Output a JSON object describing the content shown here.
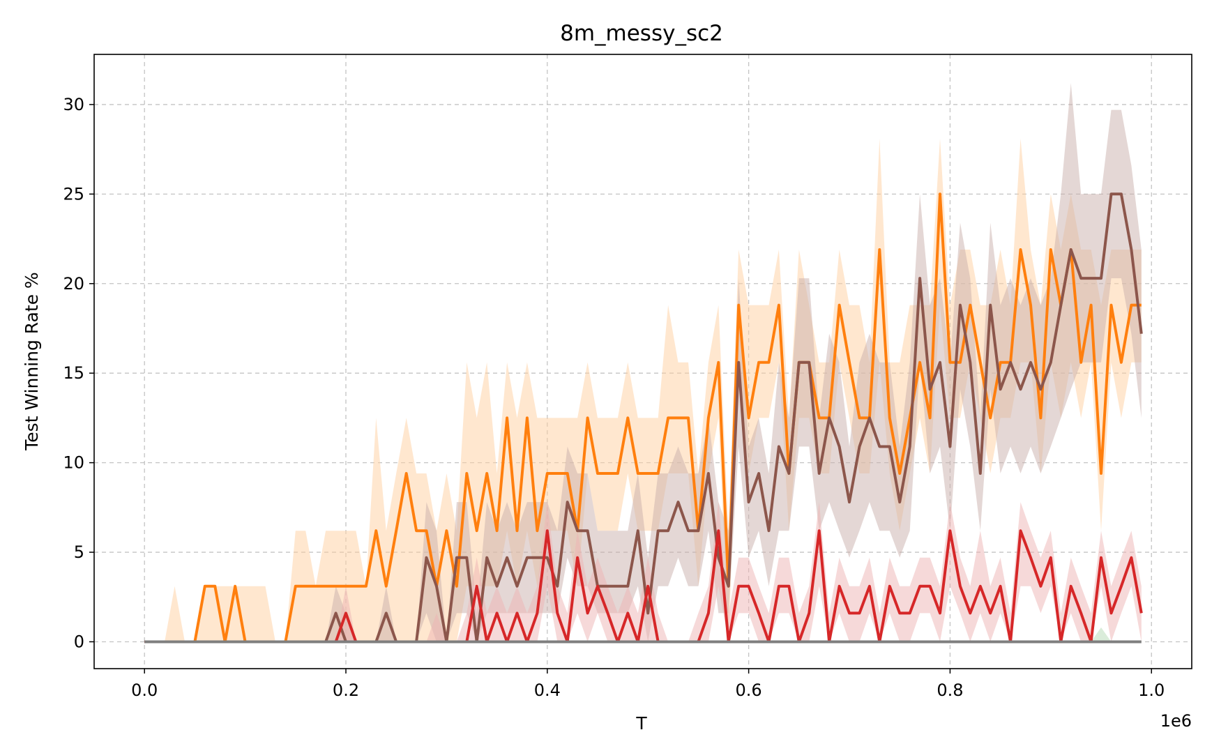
{
  "chart_data": {
    "type": "line",
    "title": "8m_messy_sc2",
    "xlabel": "T",
    "ylabel": "Test Winning Rate %",
    "x_offset_label": "1e6",
    "xlim": [
      -0.05,
      1.04
    ],
    "ylim": [
      -1.5,
      32.8
    ],
    "x_ticks": [
      0.0,
      0.2,
      0.4,
      0.6,
      0.8,
      1.0
    ],
    "x_tick_labels": [
      "0.0",
      "0.2",
      "0.4",
      "0.6",
      "0.8",
      "1.0"
    ],
    "y_ticks": [
      0,
      5,
      10,
      15,
      20,
      25,
      30
    ],
    "y_tick_labels": [
      "0",
      "5",
      "10",
      "15",
      "20",
      "25",
      "30"
    ],
    "grid": true,
    "x": [
      0.0,
      0.01,
      0.02,
      0.03,
      0.04,
      0.05,
      0.06,
      0.07,
      0.08,
      0.09,
      0.1,
      0.11,
      0.12,
      0.13,
      0.14,
      0.15,
      0.16,
      0.17,
      0.18,
      0.19,
      0.2,
      0.21,
      0.22,
      0.23,
      0.24,
      0.25,
      0.26,
      0.27,
      0.28,
      0.29,
      0.3,
      0.31,
      0.32,
      0.33,
      0.34,
      0.35,
      0.36,
      0.37,
      0.38,
      0.39,
      0.4,
      0.41,
      0.42,
      0.43,
      0.44,
      0.45,
      0.46,
      0.47,
      0.48,
      0.49,
      0.5,
      0.51,
      0.52,
      0.53,
      0.54,
      0.55,
      0.56,
      0.57,
      0.58,
      0.59,
      0.6,
      0.61,
      0.62,
      0.63,
      0.64,
      0.65,
      0.66,
      0.67,
      0.68,
      0.69,
      0.7,
      0.71,
      0.72,
      0.73,
      0.74,
      0.75,
      0.76,
      0.77,
      0.78,
      0.79,
      0.8,
      0.81,
      0.82,
      0.83,
      0.84,
      0.85,
      0.86,
      0.87,
      0.88,
      0.89,
      0.9,
      0.91,
      0.92,
      0.93,
      0.94,
      0.95,
      0.96,
      0.97,
      0.98,
      0.99
    ],
    "series": [
      {
        "color": "#ff7f0e",
        "band_color": "#ffcf9f",
        "values": [
          0,
          0,
          0,
          0,
          0,
          0,
          3.1,
          3.1,
          0,
          3.1,
          0,
          0,
          0,
          0,
          0,
          3.1,
          3.1,
          3.1,
          3.1,
          3.1,
          3.1,
          3.1,
          3.1,
          6.2,
          3.1,
          6.2,
          9.4,
          6.2,
          6.2,
          3.1,
          6.2,
          3.1,
          9.4,
          6.2,
          9.4,
          6.2,
          12.5,
          6.2,
          12.5,
          6.2,
          9.4,
          9.4,
          9.4,
          6.2,
          12.5,
          9.4,
          9.4,
          9.4,
          12.5,
          9.4,
          9.4,
          9.4,
          12.5,
          12.5,
          12.5,
          6.2,
          12.5,
          15.6,
          3.1,
          18.8,
          12.5,
          15.6,
          15.6,
          18.8,
          9.4,
          15.6,
          15.6,
          12.5,
          12.5,
          18.8,
          15.6,
          12.5,
          12.5,
          21.9,
          12.5,
          9.4,
          12.5,
          15.6,
          12.5,
          25.0,
          15.6,
          15.6,
          18.8,
          15.6,
          12.5,
          15.6,
          15.6,
          21.9,
          18.8,
          12.5,
          21.9,
          18.8,
          21.9,
          15.6,
          18.8,
          9.4,
          18.8,
          15.6,
          18.8,
          18.8
        ],
        "lower": [
          0,
          0,
          0,
          0,
          0,
          0,
          0,
          0,
          0,
          0,
          0,
          0,
          0,
          0,
          0,
          0,
          0,
          0,
          0,
          0,
          0,
          0,
          0,
          0,
          0,
          0,
          0,
          0,
          0,
          0,
          0,
          0,
          3.1,
          3.1,
          3.1,
          3.1,
          6.2,
          3.1,
          6.2,
          3.1,
          6.2,
          6.2,
          6.2,
          3.1,
          9.4,
          6.2,
          6.2,
          6.2,
          9.4,
          6.2,
          6.2,
          6.2,
          9.4,
          9.4,
          9.4,
          3.1,
          9.4,
          12.5,
          0,
          15.6,
          9.4,
          12.5,
          12.5,
          15.6,
          6.2,
          12.5,
          12.5,
          9.4,
          9.4,
          15.6,
          12.5,
          9.4,
          9.4,
          15.6,
          9.4,
          6.2,
          9.4,
          12.5,
          9.4,
          18.8,
          12.5,
          12.5,
          15.6,
          12.5,
          9.4,
          12.5,
          12.5,
          15.6,
          15.6,
          9.4,
          15.6,
          12.5,
          15.6,
          12.5,
          15.6,
          6.2,
          15.6,
          12.5,
          15.6,
          15.6
        ],
        "upper": [
          0,
          0,
          0,
          3.1,
          0,
          0,
          3.1,
          3.1,
          3.1,
          3.1,
          3.1,
          3.1,
          3.1,
          0,
          0,
          6.2,
          6.2,
          3.1,
          6.2,
          6.2,
          6.2,
          6.2,
          3.1,
          12.5,
          6.2,
          9.4,
          12.5,
          9.4,
          9.4,
          6.2,
          9.4,
          6.2,
          15.6,
          12.5,
          15.6,
          9.4,
          15.6,
          12.5,
          15.6,
          12.5,
          12.5,
          12.5,
          12.5,
          12.5,
          15.6,
          12.5,
          12.5,
          12.5,
          15.6,
          12.5,
          12.5,
          12.5,
          18.8,
          15.6,
          15.6,
          9.4,
          15.6,
          18.8,
          6.2,
          21.9,
          18.8,
          18.8,
          18.8,
          21.9,
          12.5,
          21.9,
          18.8,
          15.6,
          15.6,
          21.9,
          18.8,
          18.8,
          15.6,
          28.1,
          15.6,
          15.6,
          18.8,
          18.8,
          18.8,
          28.1,
          18.8,
          21.9,
          21.9,
          18.8,
          18.8,
          21.9,
          18.8,
          28.1,
          21.9,
          18.8,
          25.0,
          21.9,
          25.0,
          21.9,
          21.9,
          18.8,
          21.9,
          21.9,
          21.9,
          21.9
        ]
      },
      {
        "color": "#8c564b",
        "band_color": "#c9b0ac",
        "values": [
          0,
          0,
          0,
          0,
          0,
          0,
          0,
          0,
          0,
          0,
          0,
          0,
          0,
          0,
          0,
          0,
          0,
          0,
          0,
          1.6,
          0,
          0,
          0,
          0,
          1.6,
          0,
          0,
          0,
          4.7,
          3.1,
          0,
          4.7,
          4.7,
          0,
          4.7,
          3.1,
          4.7,
          3.1,
          4.7,
          4.7,
          4.7,
          3.1,
          7.8,
          6.2,
          6.2,
          3.1,
          3.1,
          3.1,
          3.1,
          6.2,
          1.6,
          6.2,
          6.2,
          7.8,
          6.2,
          6.2,
          9.4,
          4.7,
          3.1,
          15.6,
          7.8,
          9.4,
          6.2,
          10.9,
          9.4,
          15.6,
          15.6,
          9.4,
          12.5,
          10.9,
          7.8,
          10.9,
          12.5,
          10.9,
          10.9,
          7.8,
          10.9,
          20.3,
          14.1,
          15.6,
          10.9,
          18.8,
          15.6,
          9.4,
          18.8,
          14.1,
          15.6,
          14.1,
          15.6,
          14.1,
          15.6,
          18.8,
          21.9,
          20.3,
          20.3,
          20.3,
          25.0,
          25.0,
          21.9,
          17.2
        ],
        "lower": [
          0,
          0,
          0,
          0,
          0,
          0,
          0,
          0,
          0,
          0,
          0,
          0,
          0,
          0,
          0,
          0,
          0,
          0,
          0,
          0,
          0,
          0,
          0,
          0,
          0,
          0,
          0,
          0,
          1.6,
          0,
          0,
          1.6,
          1.6,
          0,
          1.6,
          1.6,
          1.6,
          1.6,
          1.6,
          1.6,
          1.6,
          1.6,
          4.7,
          3.1,
          3.1,
          1.6,
          1.6,
          1.6,
          1.6,
          3.1,
          0,
          3.1,
          3.1,
          4.7,
          3.1,
          3.1,
          6.2,
          1.6,
          1.6,
          10.9,
          4.7,
          6.2,
          3.1,
          6.2,
          6.2,
          10.9,
          10.9,
          6.2,
          7.8,
          6.2,
          4.7,
          6.2,
          7.8,
          6.2,
          6.2,
          4.7,
          6.2,
          15.6,
          9.4,
          10.9,
          6.2,
          14.1,
          10.9,
          6.2,
          14.1,
          9.4,
          10.9,
          9.4,
          10.9,
          9.4,
          10.9,
          12.5,
          14.1,
          15.6,
          15.6,
          15.6,
          20.3,
          20.3,
          17.2,
          12.5
        ],
        "upper": [
          0,
          0,
          0,
          0,
          0,
          0,
          0,
          0,
          0,
          0,
          0,
          0,
          0,
          0,
          0,
          0,
          0,
          0,
          0,
          3.1,
          1.6,
          0,
          0,
          0,
          3.1,
          0,
          0,
          0,
          7.8,
          6.2,
          0,
          7.8,
          7.8,
          1.6,
          7.8,
          6.2,
          7.8,
          6.2,
          7.8,
          7.8,
          7.8,
          6.2,
          10.9,
          9.4,
          9.4,
          6.2,
          6.2,
          6.2,
          6.2,
          9.4,
          4.7,
          9.4,
          9.4,
          10.9,
          9.4,
          9.4,
          12.5,
          7.8,
          6.2,
          20.3,
          10.9,
          12.5,
          9.4,
          15.6,
          12.5,
          20.3,
          20.3,
          12.5,
          17.2,
          15.6,
          10.9,
          15.6,
          17.2,
          15.6,
          15.6,
          10.9,
          15.6,
          25.0,
          18.8,
          20.3,
          15.6,
          23.4,
          20.3,
          12.5,
          23.4,
          18.8,
          20.3,
          18.8,
          20.3,
          18.8,
          20.3,
          25.0,
          31.2,
          25.0,
          25.0,
          25.0,
          29.7,
          29.7,
          26.6,
          21.9
        ]
      },
      {
        "color": "#d62728",
        "band_color": "#eeb3b3",
        "values": [
          0,
          0,
          0,
          0,
          0,
          0,
          0,
          0,
          0,
          0,
          0,
          0,
          0,
          0,
          0,
          0,
          0,
          0,
          0,
          0,
          1.6,
          0,
          0,
          0,
          0,
          0,
          0,
          0,
          0,
          0,
          0,
          0,
          0,
          3.1,
          0,
          1.6,
          0,
          1.6,
          0,
          1.6,
          6.2,
          1.6,
          0,
          4.7,
          1.6,
          3.1,
          1.6,
          0,
          1.6,
          0,
          3.1,
          0,
          0,
          0,
          0,
          0,
          1.6,
          6.2,
          0,
          3.1,
          3.1,
          1.6,
          0,
          3.1,
          3.1,
          0,
          1.6,
          6.2,
          0,
          3.1,
          1.6,
          1.6,
          3.1,
          0,
          3.1,
          1.6,
          1.6,
          3.1,
          3.1,
          1.6,
          6.2,
          3.1,
          1.6,
          3.1,
          1.6,
          3.1,
          0,
          6.2,
          4.7,
          3.1,
          4.7,
          0,
          3.1,
          1.6,
          0,
          4.7,
          1.6,
          3.1,
          4.7,
          1.6
        ],
        "lower": [
          0,
          0,
          0,
          0,
          0,
          0,
          0,
          0,
          0,
          0,
          0,
          0,
          0,
          0,
          0,
          0,
          0,
          0,
          0,
          0,
          0,
          0,
          0,
          0,
          0,
          0,
          0,
          0,
          0,
          0,
          0,
          0,
          0,
          0,
          0,
          0,
          0,
          0,
          0,
          0,
          3.1,
          0,
          0,
          1.6,
          0,
          1.6,
          0,
          0,
          0,
          0,
          0,
          0,
          0,
          0,
          0,
          0,
          0,
          3.1,
          0,
          1.6,
          1.6,
          0,
          0,
          1.6,
          1.6,
          0,
          0,
          3.1,
          0,
          1.6,
          0,
          0,
          1.6,
          0,
          1.6,
          0,
          0,
          1.6,
          1.6,
          0,
          3.1,
          1.6,
          0,
          1.6,
          0,
          1.6,
          0,
          3.1,
          3.1,
          1.6,
          3.1,
          0,
          1.6,
          0,
          0,
          3.1,
          0,
          1.6,
          3.1,
          0
        ],
        "upper": [
          0,
          0,
          0,
          0,
          0,
          0,
          0,
          0,
          0,
          0,
          0,
          0,
          0,
          0,
          0,
          0,
          0,
          0,
          0,
          0,
          3.1,
          0,
          0,
          0,
          0,
          0,
          0,
          0,
          0,
          1.6,
          0,
          0,
          1.6,
          4.7,
          1.6,
          3.1,
          1.6,
          3.1,
          1.6,
          3.1,
          7.8,
          3.1,
          1.6,
          6.2,
          3.1,
          4.7,
          3.1,
          1.6,
          3.1,
          1.6,
          4.7,
          1.6,
          0,
          0,
          0,
          1.6,
          3.1,
          7.8,
          1.6,
          4.7,
          4.7,
          3.1,
          1.6,
          4.7,
          4.7,
          1.6,
          3.1,
          7.8,
          1.6,
          4.7,
          3.1,
          3.1,
          4.7,
          1.6,
          4.7,
          3.1,
          3.1,
          4.7,
          4.7,
          3.1,
          7.8,
          4.7,
          3.1,
          6.2,
          3.1,
          4.7,
          1.6,
          7.8,
          6.2,
          4.7,
          6.2,
          1.6,
          4.7,
          3.1,
          1.6,
          6.2,
          3.1,
          4.7,
          6.2,
          3.1
        ]
      },
      {
        "color": "#7f7f7f",
        "band_color": "#b5dab5",
        "values": [
          0,
          0,
          0,
          0,
          0,
          0,
          0,
          0,
          0,
          0,
          0,
          0,
          0,
          0,
          0,
          0,
          0,
          0,
          0,
          0,
          0,
          0,
          0,
          0,
          0,
          0,
          0,
          0,
          0,
          0,
          0,
          0,
          0,
          0,
          0,
          0,
          0,
          0,
          0,
          0,
          0,
          0,
          0,
          0,
          0,
          0,
          0,
          0,
          0,
          0,
          0,
          0,
          0,
          0,
          0,
          0,
          0,
          0,
          0,
          0,
          0,
          0,
          0,
          0,
          0,
          0,
          0,
          0,
          0,
          0,
          0,
          0,
          0,
          0,
          0,
          0,
          0,
          0,
          0,
          0,
          0,
          0,
          0,
          0,
          0,
          0,
          0,
          0,
          0,
          0,
          0,
          0,
          0,
          0,
          0,
          0,
          0,
          0,
          0,
          0
        ],
        "lower": [
          0,
          0,
          0,
          0,
          0,
          0,
          0,
          0,
          0,
          0,
          0,
          0,
          0,
          0,
          0,
          0,
          0,
          0,
          0,
          0,
          0,
          0,
          0,
          0,
          0,
          0,
          0,
          0,
          0,
          0,
          0,
          0,
          0,
          0,
          0,
          0,
          0,
          0,
          0,
          0,
          0,
          0,
          0,
          0,
          0,
          0,
          0,
          0,
          0,
          0,
          0,
          0,
          0,
          0,
          0,
          0,
          0,
          0,
          0,
          0,
          0,
          0,
          0,
          0,
          0,
          0,
          0,
          0,
          0,
          0,
          0,
          0,
          0,
          0,
          0,
          0,
          0,
          0,
          0,
          0,
          0,
          0,
          0,
          0,
          0,
          0,
          0,
          0,
          0,
          0,
          0,
          0,
          0,
          0,
          0,
          0,
          0,
          0,
          0,
          0
        ],
        "upper": [
          0,
          0,
          0,
          0,
          0,
          0,
          0,
          0,
          0,
          0,
          0,
          0,
          0,
          0,
          0,
          0,
          0,
          0,
          0,
          0,
          0,
          0,
          0,
          0,
          0,
          0,
          0,
          0,
          0,
          0,
          0,
          0,
          0,
          0,
          0,
          0,
          0,
          0,
          0,
          0,
          0,
          0,
          0,
          0,
          0,
          0,
          0,
          0,
          0,
          0,
          0,
          0,
          0,
          0,
          0,
          0,
          0,
          0,
          0,
          0,
          0,
          0,
          0,
          0,
          0,
          0,
          0,
          0,
          0,
          0,
          0,
          0,
          0,
          0,
          0,
          0,
          0,
          0,
          0,
          0,
          0,
          0,
          0,
          0,
          0,
          0,
          0,
          0,
          0,
          0,
          0,
          0,
          0,
          0,
          0,
          0.8,
          0,
          0,
          0,
          0
        ]
      }
    ]
  }
}
